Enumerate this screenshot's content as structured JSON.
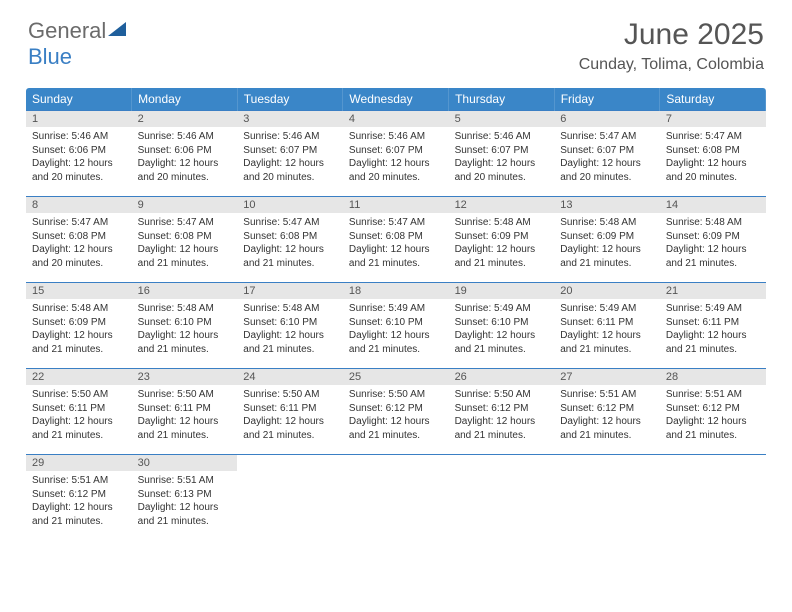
{
  "brand": {
    "part1": "General",
    "part2": "Blue",
    "shape_color": "#1f5f9c"
  },
  "title": "June 2025",
  "location": "Cunday, Tolima, Colombia",
  "colors": {
    "header_bg": "#3a86c8",
    "header_text": "#ffffff",
    "daynum_bg": "#e6e6e6",
    "row_border": "#3a7fc4",
    "text": "#333333",
    "title_text": "#555555"
  },
  "typography": {
    "title_fontsize": 30,
    "location_fontsize": 16,
    "header_fontsize": 12,
    "daynum_fontsize": 11,
    "body_fontsize": 10
  },
  "weekdays": [
    "Sunday",
    "Monday",
    "Tuesday",
    "Wednesday",
    "Thursday",
    "Friday",
    "Saturday"
  ],
  "weeks": [
    [
      {
        "n": "1",
        "sr": "5:46 AM",
        "ss": "6:06 PM",
        "d": "12 hours and 20 minutes."
      },
      {
        "n": "2",
        "sr": "5:46 AM",
        "ss": "6:06 PM",
        "d": "12 hours and 20 minutes."
      },
      {
        "n": "3",
        "sr": "5:46 AM",
        "ss": "6:07 PM",
        "d": "12 hours and 20 minutes."
      },
      {
        "n": "4",
        "sr": "5:46 AM",
        "ss": "6:07 PM",
        "d": "12 hours and 20 minutes."
      },
      {
        "n": "5",
        "sr": "5:46 AM",
        "ss": "6:07 PM",
        "d": "12 hours and 20 minutes."
      },
      {
        "n": "6",
        "sr": "5:47 AM",
        "ss": "6:07 PM",
        "d": "12 hours and 20 minutes."
      },
      {
        "n": "7",
        "sr": "5:47 AM",
        "ss": "6:08 PM",
        "d": "12 hours and 20 minutes."
      }
    ],
    [
      {
        "n": "8",
        "sr": "5:47 AM",
        "ss": "6:08 PM",
        "d": "12 hours and 20 minutes."
      },
      {
        "n": "9",
        "sr": "5:47 AM",
        "ss": "6:08 PM",
        "d": "12 hours and 21 minutes."
      },
      {
        "n": "10",
        "sr": "5:47 AM",
        "ss": "6:08 PM",
        "d": "12 hours and 21 minutes."
      },
      {
        "n": "11",
        "sr": "5:47 AM",
        "ss": "6:08 PM",
        "d": "12 hours and 21 minutes."
      },
      {
        "n": "12",
        "sr": "5:48 AM",
        "ss": "6:09 PM",
        "d": "12 hours and 21 minutes."
      },
      {
        "n": "13",
        "sr": "5:48 AM",
        "ss": "6:09 PM",
        "d": "12 hours and 21 minutes."
      },
      {
        "n": "14",
        "sr": "5:48 AM",
        "ss": "6:09 PM",
        "d": "12 hours and 21 minutes."
      }
    ],
    [
      {
        "n": "15",
        "sr": "5:48 AM",
        "ss": "6:09 PM",
        "d": "12 hours and 21 minutes."
      },
      {
        "n": "16",
        "sr": "5:48 AM",
        "ss": "6:10 PM",
        "d": "12 hours and 21 minutes."
      },
      {
        "n": "17",
        "sr": "5:48 AM",
        "ss": "6:10 PM",
        "d": "12 hours and 21 minutes."
      },
      {
        "n": "18",
        "sr": "5:49 AM",
        "ss": "6:10 PM",
        "d": "12 hours and 21 minutes."
      },
      {
        "n": "19",
        "sr": "5:49 AM",
        "ss": "6:10 PM",
        "d": "12 hours and 21 minutes."
      },
      {
        "n": "20",
        "sr": "5:49 AM",
        "ss": "6:11 PM",
        "d": "12 hours and 21 minutes."
      },
      {
        "n": "21",
        "sr": "5:49 AM",
        "ss": "6:11 PM",
        "d": "12 hours and 21 minutes."
      }
    ],
    [
      {
        "n": "22",
        "sr": "5:50 AM",
        "ss": "6:11 PM",
        "d": "12 hours and 21 minutes."
      },
      {
        "n": "23",
        "sr": "5:50 AM",
        "ss": "6:11 PM",
        "d": "12 hours and 21 minutes."
      },
      {
        "n": "24",
        "sr": "5:50 AM",
        "ss": "6:11 PM",
        "d": "12 hours and 21 minutes."
      },
      {
        "n": "25",
        "sr": "5:50 AM",
        "ss": "6:12 PM",
        "d": "12 hours and 21 minutes."
      },
      {
        "n": "26",
        "sr": "5:50 AM",
        "ss": "6:12 PM",
        "d": "12 hours and 21 minutes."
      },
      {
        "n": "27",
        "sr": "5:51 AM",
        "ss": "6:12 PM",
        "d": "12 hours and 21 minutes."
      },
      {
        "n": "28",
        "sr": "5:51 AM",
        "ss": "6:12 PM",
        "d": "12 hours and 21 minutes."
      }
    ],
    [
      {
        "n": "29",
        "sr": "5:51 AM",
        "ss": "6:12 PM",
        "d": "12 hours and 21 minutes."
      },
      {
        "n": "30",
        "sr": "5:51 AM",
        "ss": "6:13 PM",
        "d": "12 hours and 21 minutes."
      },
      null,
      null,
      null,
      null,
      null
    ]
  ],
  "labels": {
    "sunrise": "Sunrise:",
    "sunset": "Sunset:",
    "daylight": "Daylight:"
  }
}
